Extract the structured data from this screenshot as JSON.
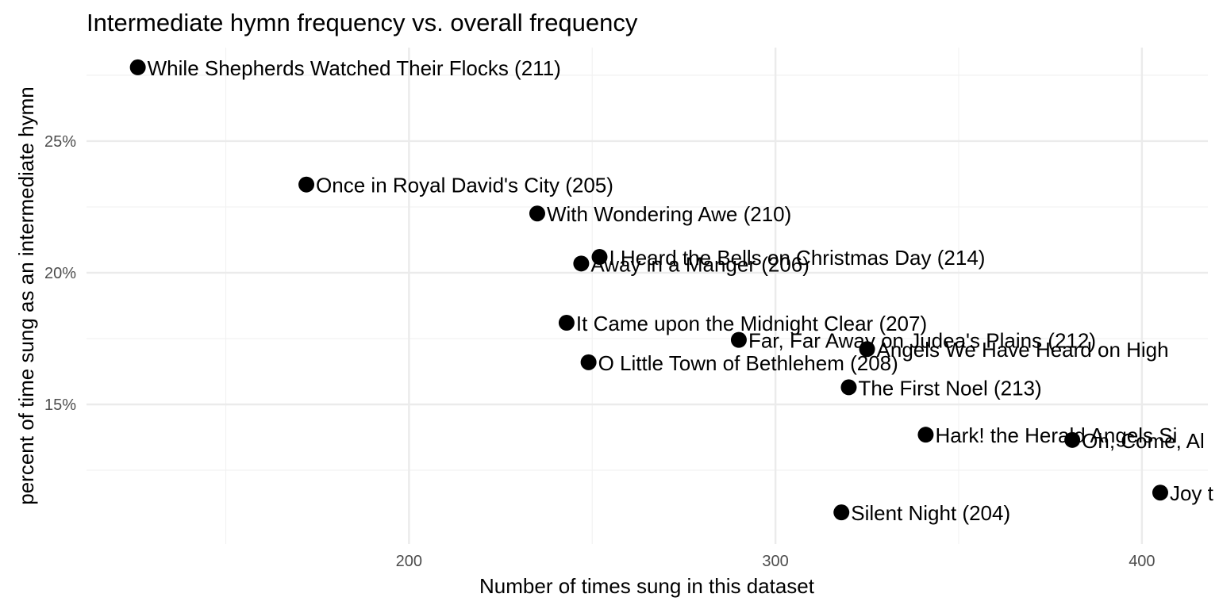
{
  "chart_data": {
    "type": "scatter",
    "title": "Intermediate hymn frequency vs. overall frequency",
    "xlabel": "Number of times sung in this dataset",
    "ylabel": "percent of time sung as an intermediate hymn",
    "xlim": [
      112,
      418
    ],
    "ylim": [
      0.097,
      0.2855
    ],
    "x_ticks": [
      200,
      300,
      400
    ],
    "x_minor_ticks": [
      150,
      250,
      350
    ],
    "y_ticks": [
      0.15,
      0.2,
      0.25
    ],
    "y_tick_labels": [
      "15%",
      "20%",
      "25%"
    ],
    "y_minor_ticks": [
      0.125,
      0.175,
      0.225,
      0.275
    ],
    "grid": true,
    "legend": "none",
    "point_color": "#000000",
    "points": [
      {
        "label": "While Shepherds Watched Their Flocks (211)",
        "x": 126,
        "y": 0.278
      },
      {
        "label": "Once in Royal David's City (205)",
        "x": 172,
        "y": 0.2335
      },
      {
        "label": "With Wondering Awe (210)",
        "x": 235,
        "y": 0.2225
      },
      {
        "label": "I Heard the Bells on Christmas Day (214)",
        "x": 252,
        "y": 0.206
      },
      {
        "label": "Away in a Manger (206)",
        "x": 247,
        "y": 0.2035
      },
      {
        "label": "It Came upon the Midnight Clear (207)",
        "x": 243,
        "y": 0.181
      },
      {
        "label": "Far, Far Away on Judea's Plains (212)",
        "x": 290,
        "y": 0.1745
      },
      {
        "label": "Angels We Have Heard on High",
        "x": 325,
        "y": 0.171
      },
      {
        "label": "O Little Town of Bethlehem (208)",
        "x": 249,
        "y": 0.166
      },
      {
        "label": "The First Noel (213)",
        "x": 320,
        "y": 0.1565
      },
      {
        "label": "Hark! the Herald Angels Si",
        "x": 341,
        "y": 0.1385
      },
      {
        "label": "Oh, Come, Al",
        "x": 381,
        "y": 0.1365
      },
      {
        "label": "Joy t",
        "x": 405,
        "y": 0.1165
      },
      {
        "label": "Silent Night (204)",
        "x": 318,
        "y": 0.109
      }
    ]
  }
}
